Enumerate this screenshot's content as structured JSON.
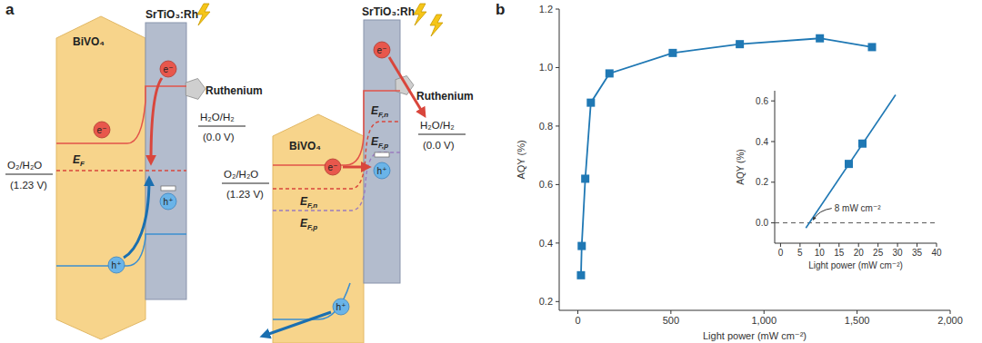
{
  "panel_labels": [
    "a",
    "b"
  ],
  "diagram": {
    "schemes": [
      {
        "materials": [
          "BiVO₄",
          "SrTiO₃:Rh"
        ],
        "cocatalyst": "Ruthenium",
        "reduction": {
          "couple": "H₂O/H₂",
          "potential": "(0.0 V)"
        },
        "oxidation": {
          "couple": "O₂/H₂O",
          "potential": "(1.23 V)"
        },
        "levels": [
          {
            "symbol": "E",
            "subscript": "F"
          }
        ],
        "carriers": [
          "e⁻",
          "e⁻",
          "h⁺",
          "h⁺"
        ]
      },
      {
        "materials": [
          "BiVO₄",
          "SrTiO₃:Rh"
        ],
        "cocatalyst": "Ruthenium",
        "reduction": {
          "couple": "H₂O/H₂",
          "potential": "(0.0 V)"
        },
        "oxidation": {
          "couple": "O₂/H₂O",
          "potential": "(1.23 V)"
        },
        "levels": [
          {
            "symbol": "E",
            "subscript": "F,n"
          },
          {
            "symbol": "E",
            "subscript": "F,p"
          },
          {
            "symbol": "E",
            "subscript": "F,n"
          },
          {
            "symbol": "E",
            "subscript": "F,p"
          }
        ],
        "carriers": [
          "e⁻",
          "e⁻",
          "h⁺",
          "h⁺"
        ]
      }
    ]
  },
  "chart_data": [
    {
      "type": "line",
      "marker": "square",
      "line_style": "solid",
      "color": "#1f78b4",
      "grid": false,
      "x": [
        17,
        21,
        40,
        70,
        170,
        510,
        870,
        1300,
        1580
      ],
      "values": [
        0.29,
        0.39,
        0.62,
        0.88,
        0.98,
        1.05,
        1.08,
        1.1,
        1.07
      ],
      "xlim": [
        -100,
        2000
      ],
      "xticks": [
        0,
        500,
        {
          "value": 1000,
          "label": "1,000"
        },
        {
          "value": 1500,
          "label": "1,500"
        },
        {
          "value": 2000,
          "label": "2,000"
        }
      ],
      "ylim": [
        0.17,
        1.2
      ],
      "yticks": [
        0.2,
        0.4,
        0.6,
        0.8,
        {
          "value": 1,
          "label": "1.0"
        },
        1.2
      ],
      "x_label": "Light power (mW cm⁻²)",
      "y_label": "AQY (%)"
    },
    {
      "type": "scatter",
      "marker": "square",
      "color": "#1f78b4",
      "grid": false,
      "x": [
        17.5,
        21
      ],
      "values": [
        0.29,
        0.39
      ],
      "fit": {
        "x": [
          6.5,
          29.5
        ],
        "values": [
          -0.025,
          0.63
        ],
        "line_style": "solid"
      },
      "reference_line": {
        "value": 0,
        "line_style": "dashed"
      },
      "annotation": {
        "text": "8 mW cm⁻²",
        "x": 8,
        "y": 0
      },
      "xlim": [
        -1.5,
        40
      ],
      "xticks": [
        0,
        5,
        10,
        15,
        20,
        25,
        30,
        35,
        40
      ],
      "ylim": [
        -0.1,
        0.65
      ],
      "yticks": [
        {
          "value": 0,
          "label": "0.0"
        },
        0.2,
        0.4,
        0.6
      ],
      "x_label": "Light power (mW cm⁻²)",
      "y_label": "AQY (%)"
    }
  ]
}
